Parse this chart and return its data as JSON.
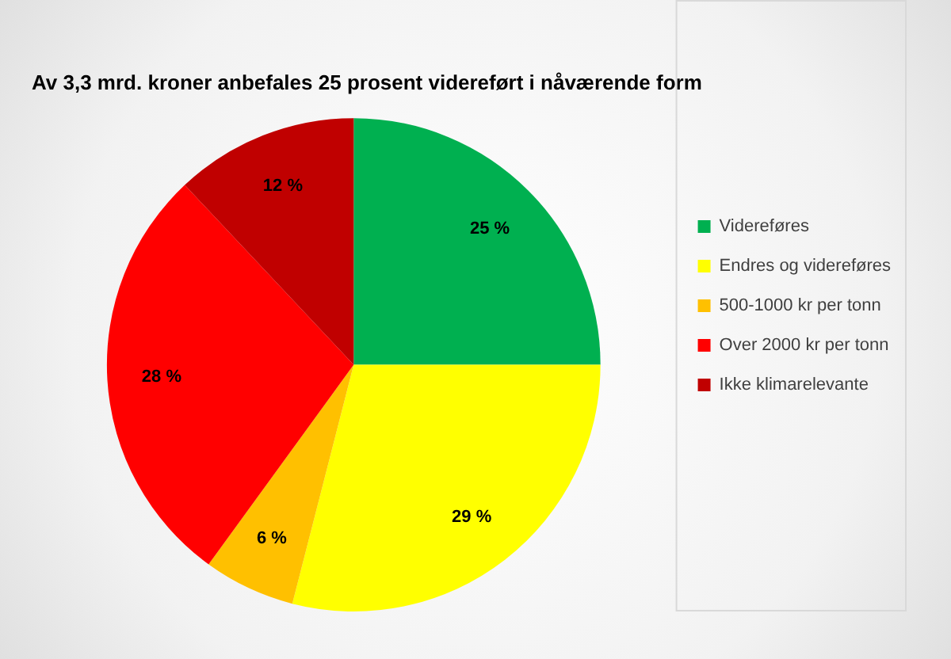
{
  "chart_data": {
    "type": "pie",
    "title": "Av 3,3 mrd. kroner anbefales 25 prosent videreført i nåværende form",
    "categories": [
      "Videreføres",
      "Endres og videreføres",
      "500-1000 kr per tonn",
      "Over 2000 kr per tonn",
      "Ikke klimarelevante"
    ],
    "values": [
      25,
      29,
      6,
      28,
      12
    ],
    "colors": [
      "#00b050",
      "#ffff00",
      "#ffc000",
      "#ff0000",
      "#c00000"
    ],
    "value_labels": [
      "25 %",
      "29 %",
      "6 %",
      "28 %",
      "12 %"
    ],
    "legend": "right"
  }
}
